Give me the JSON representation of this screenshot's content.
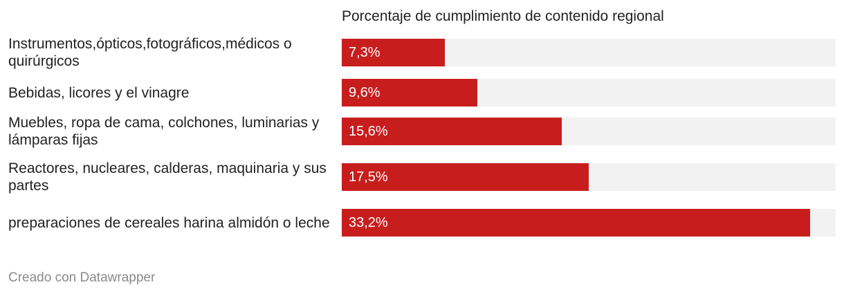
{
  "chart_data": {
    "type": "bar",
    "orientation": "horizontal",
    "column_header": "Porcentaje de cumplimiento de contenido regional",
    "categories": [
      "Instrumentos,ópticos,fotográficos,médicos o quirúrgicos",
      "Bebidas, licores y el vinagre",
      "Muebles, ropa de cama, colchones, luminarias y lámparas fijas",
      "Reactores, nucleares, calderas, maquinaria y sus partes",
      "preparaciones de cereales harina almidón o leche"
    ],
    "values": [
      7.3,
      9.6,
      15.6,
      17.5,
      33.2
    ],
    "value_labels": [
      "7,3%",
      "9,6%",
      "15,6%",
      "17,5%",
      "33,2%"
    ],
    "xlim": [
      0,
      35
    ],
    "grid": false,
    "bar_color": "#c71e1d",
    "track_color": "#f2f2f2"
  },
  "footer": {
    "credit": "Creado con Datawrapper"
  }
}
